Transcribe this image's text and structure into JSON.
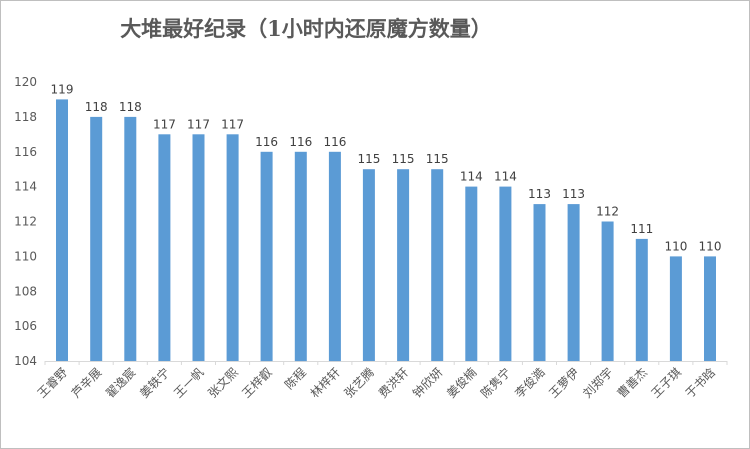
{
  "chart_data": {
    "type": "bar",
    "title": "大堆最好纪录（1小时内还原魔方数量）",
    "xlabel": "",
    "ylabel": "",
    "categories": [
      "王睿野",
      "芦辛展",
      "翟逸宸",
      "姜轶宁",
      "王一帆",
      "张文熙",
      "王梓叡",
      "陈程",
      "林梓轩",
      "张艺腾",
      "费洪轩",
      "钟欣妍",
      "姜俊楠",
      "陈隽宁",
      "李俊澔",
      "王萝伊",
      "刘郑宇",
      "曹善杰",
      "王子琪",
      "于书晗"
    ],
    "values": [
      119,
      118,
      118,
      117,
      117,
      117,
      116,
      116,
      116,
      115,
      115,
      115,
      114,
      114,
      113,
      113,
      112,
      111,
      110,
      110
    ],
    "ylim": [
      104,
      120
    ],
    "yticks": [
      104,
      106,
      108,
      110,
      112,
      114,
      116,
      118,
      120
    ],
    "grid": false,
    "legend": "none",
    "data_labels": true,
    "bar_color": "#5b9bd5",
    "axis_color": "#d9d9d9"
  }
}
